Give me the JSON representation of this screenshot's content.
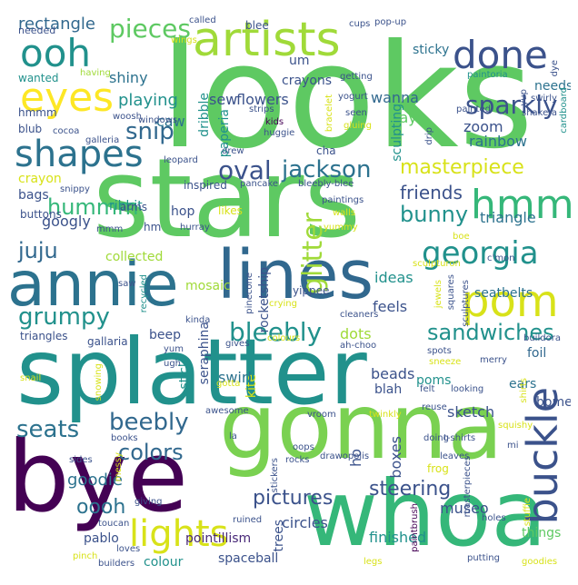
{
  "palette": {
    "background": "#ffffff",
    "dark_purple": "#440154",
    "indigo": "#3b528b",
    "teal": "#21918c",
    "green": "#5ec962",
    "yellow": "#fde725"
  },
  "words": [
    {
      "text": "looks",
      "color": "#5ec962"
    },
    {
      "text": "stars",
      "color": "#5ec962"
    },
    {
      "text": "splatter",
      "color": "#21918c"
    },
    {
      "text": "gonna",
      "color": "#7ad151"
    },
    {
      "text": "whoa",
      "color": "#35b779"
    },
    {
      "text": "bye",
      "color": "#440154"
    },
    {
      "text": "annie",
      "color": "#2c728e"
    },
    {
      "text": "lines",
      "color": "#31688e"
    },
    {
      "text": "artists",
      "color": "#a0da39"
    },
    {
      "text": "eyes",
      "color": "#fde725"
    },
    {
      "text": "ooh",
      "color": "#21918c"
    },
    {
      "text": "done",
      "color": "#3b528b"
    },
    {
      "text": "shapes",
      "color": "#2c728e"
    },
    {
      "text": "pom",
      "color": "#d8e219"
    },
    {
      "text": "hmm",
      "color": "#35b779"
    },
    {
      "text": "buckle",
      "color": "#3b528b"
    },
    {
      "text": "lights",
      "color": "#d8e219"
    },
    {
      "text": "georgia",
      "color": "#21918c"
    },
    {
      "text": "jackson",
      "color": "#2c728e"
    },
    {
      "text": "oval",
      "color": "#3b528b"
    },
    {
      "text": "masterpiece",
      "color": "#d8e219"
    },
    {
      "text": "pieces",
      "color": "#5ec962"
    },
    {
      "text": "sparkly",
      "color": "#3b528b"
    },
    {
      "text": "snip",
      "color": "#31688e"
    },
    {
      "text": "bleebly",
      "color": "#21918c"
    },
    {
      "text": "grumpy",
      "color": "#21918c"
    },
    {
      "text": "sandwiches",
      "color": "#21918c"
    },
    {
      "text": "glitter",
      "color": "#a0da39"
    },
    {
      "text": "beebly",
      "color": "#31688e"
    },
    {
      "text": "seats",
      "color": "#2c728e"
    },
    {
      "text": "colors",
      "color": "#31688e"
    },
    {
      "text": "juju",
      "color": "#31688e"
    },
    {
      "text": "bunny",
      "color": "#21918c"
    },
    {
      "text": "friends",
      "color": "#3b528b"
    },
    {
      "text": "oooh",
      "color": "#2c728e"
    },
    {
      "text": "steering",
      "color": "#3b528b"
    },
    {
      "text": "pictures",
      "color": "#3b528b"
    },
    {
      "text": "goodie",
      "color": "#2c728e"
    },
    {
      "text": "hummm",
      "color": "#35b779"
    },
    {
      "text": "wanna",
      "color": "#31688e"
    },
    {
      "text": "yay",
      "color": "#5ec962"
    },
    {
      "text": "playing",
      "color": "#21918c"
    },
    {
      "text": "rectangle",
      "color": "#31688e"
    },
    {
      "text": "crayons",
      "color": "#3b528b"
    },
    {
      "text": "flowers",
      "color": "#3b528b"
    },
    {
      "text": "sew",
      "color": "#3b528b"
    },
    {
      "text": "shiny",
      "color": "#2c728e"
    },
    {
      "text": "caw",
      "color": "#2c728e"
    },
    {
      "text": "zoom",
      "color": "#3b528b"
    },
    {
      "text": "rainbow",
      "color": "#2c728e"
    },
    {
      "text": "triangle",
      "color": "#2c728e"
    },
    {
      "text": "googly",
      "color": "#3b528b"
    },
    {
      "text": "feels",
      "color": "#3b528b"
    },
    {
      "text": "ideas",
      "color": "#21918c"
    },
    {
      "text": "mosaic",
      "color": "#a0da39"
    },
    {
      "text": "collected",
      "color": "#a0da39"
    },
    {
      "text": "hop",
      "color": "#3b528b"
    },
    {
      "text": "kite",
      "color": "#d8e219"
    },
    {
      "text": "swirl",
      "color": "#2c728e"
    },
    {
      "text": "dots",
      "color": "#a0da39"
    },
    {
      "text": "beads",
      "color": "#3b528b"
    },
    {
      "text": "blah",
      "color": "#3b528b"
    },
    {
      "text": "poms",
      "color": "#21918c"
    },
    {
      "text": "sketch",
      "color": "#3b528b"
    },
    {
      "text": "boxes",
      "color": "#3b528b"
    },
    {
      "text": "ho",
      "color": "#3b528b"
    },
    {
      "text": "museo",
      "color": "#3b528b"
    },
    {
      "text": "circles",
      "color": "#3b528b"
    },
    {
      "text": "finished",
      "color": "#21918c"
    },
    {
      "text": "things",
      "color": "#5ec962"
    },
    {
      "text": "pablo",
      "color": "#3b528b"
    },
    {
      "text": "colour",
      "color": "#21918c"
    },
    {
      "text": "spaceball",
      "color": "#3b528b"
    },
    {
      "text": "pointillism",
      "color": "#482878"
    },
    {
      "text": "trees",
      "color": "#3b528b"
    },
    {
      "text": "foil",
      "color": "#31688e"
    },
    {
      "text": "ears",
      "color": "#2c728e"
    },
    {
      "text": "bome",
      "color": "#3b528b"
    },
    {
      "text": "stick",
      "color": "#21918c"
    },
    {
      "text": "seraphina",
      "color": "#3b528b"
    },
    {
      "text": "rocketship",
      "color": "#3b528b"
    },
    {
      "text": "dribble",
      "color": "#21918c"
    },
    {
      "text": "paperia",
      "color": "#21918c"
    },
    {
      "text": "sculpting",
      "color": "#21918c"
    },
    {
      "text": "seatbelts",
      "color": "#2c728e"
    },
    {
      "text": "needs",
      "color": "#2c728e"
    },
    {
      "text": "sticky",
      "color": "#2c728e"
    },
    {
      "text": "beep",
      "color": "#3b528b"
    },
    {
      "text": "bags",
      "color": "#3b528b"
    },
    {
      "text": "ribbit",
      "color": "#21918c"
    },
    {
      "text": "crayon",
      "color": "#d8e219"
    },
    {
      "text": "um",
      "color": "#3b528b"
    },
    {
      "text": "wanted",
      "color": "#21918c"
    },
    {
      "text": "needed",
      "color": "#3b528b"
    },
    {
      "text": "blub",
      "color": "#3b528b"
    },
    {
      "text": "hmmm",
      "color": "#3b528b"
    },
    {
      "text": "blee",
      "color": "#3b528b"
    },
    {
      "text": "cups",
      "color": "#3b528b"
    },
    {
      "text": "called",
      "color": "#3b528b"
    },
    {
      "text": "pop-up",
      "color": "#3b528b"
    },
    {
      "text": "wings",
      "color": "#d8e219"
    },
    {
      "text": "having",
      "color": "#a0da39"
    },
    {
      "text": "getting",
      "color": "#3b528b"
    },
    {
      "text": "paintoria",
      "color": "#21918c"
    },
    {
      "text": "swirly",
      "color": "#3b528b"
    },
    {
      "text": "dye",
      "color": "#3b528b"
    },
    {
      "text": "yup",
      "color": "#3b528b"
    },
    {
      "text": "painted",
      "color": "#3b528b"
    },
    {
      "text": "shake-a",
      "color": "#3b528b"
    },
    {
      "text": "cardboard",
      "color": "#21918c"
    },
    {
      "text": "yogurt",
      "color": "#3b528b"
    },
    {
      "text": "seen",
      "color": "#3b528b"
    },
    {
      "text": "gluing",
      "color": "#d8e219"
    },
    {
      "text": "strips",
      "color": "#3b528b"
    },
    {
      "text": "bracelet",
      "color": "#d8e219"
    },
    {
      "text": "kids",
      "color": "#440154"
    },
    {
      "text": "huggie",
      "color": "#3b528b"
    },
    {
      "text": "drip",
      "color": "#3b528b"
    },
    {
      "text": "windows",
      "color": "#3b528b"
    },
    {
      "text": "cocoa",
      "color": "#3b528b"
    },
    {
      "text": "galleria",
      "color": "#3b528b"
    },
    {
      "text": "woosh",
      "color": "#3b528b"
    },
    {
      "text": "drew",
      "color": "#3b528b"
    },
    {
      "text": "leopard",
      "color": "#3b528b"
    },
    {
      "text": "cha",
      "color": "#3b528b"
    },
    {
      "text": "pancake",
      "color": "#3b528b"
    },
    {
      "text": "bleebly-blee",
      "color": "#3b528b"
    },
    {
      "text": "inspired",
      "color": "#3b528b"
    },
    {
      "text": "snippy",
      "color": "#3b528b"
    },
    {
      "text": "arms",
      "color": "#3b528b"
    },
    {
      "text": "buttons",
      "color": "#3b528b"
    },
    {
      "text": "likes",
      "color": "#d8e219"
    },
    {
      "text": "paintings",
      "color": "#3b528b"
    },
    {
      "text": "walls",
      "color": "#d8e219"
    },
    {
      "text": "hurray",
      "color": "#3b528b"
    },
    {
      "text": "mmm",
      "color": "#3b528b"
    },
    {
      "text": "hm",
      "color": "#3b528b"
    },
    {
      "text": "yummy",
      "color": "#d8e219"
    },
    {
      "text": "boe",
      "color": "#d8e219"
    },
    {
      "text": "c'mon",
      "color": "#3b528b"
    },
    {
      "text": "sculpturon",
      "color": "#d8e219"
    },
    {
      "text": "saw",
      "color": "#3b528b"
    },
    {
      "text": "recycled",
      "color": "#21918c"
    },
    {
      "text": "yippee",
      "color": "#3b528b"
    },
    {
      "text": "pinecone",
      "color": "#3b528b"
    },
    {
      "text": "crying",
      "color": "#d8e219"
    },
    {
      "text": "jewels",
      "color": "#d8e219"
    },
    {
      "text": "squares",
      "color": "#3b528b"
    },
    {
      "text": "sculptures",
      "color": "#3b528b"
    },
    {
      "text": "kinda",
      "color": "#3b528b"
    },
    {
      "text": "cleaners",
      "color": "#3b528b"
    },
    {
      "text": "spots",
      "color": "#3b528b"
    },
    {
      "text": "sneeze",
      "color": "#d8e219"
    },
    {
      "text": "triangles",
      "color": "#3b528b"
    },
    {
      "text": "gallaria",
      "color": "#3b528b"
    },
    {
      "text": "yum",
      "color": "#3b528b"
    },
    {
      "text": "colours",
      "color": "#d8e219"
    },
    {
      "text": "ah-choo",
      "color": "#3b528b"
    },
    {
      "text": "buildora",
      "color": "#3b528b"
    },
    {
      "text": "gives",
      "color": "#3b528b"
    },
    {
      "text": "ugh",
      "color": "#3b528b"
    },
    {
      "text": "merry",
      "color": "#3b528b"
    },
    {
      "text": "snail",
      "color": "#d8e219"
    },
    {
      "text": "snowing",
      "color": "#d8e219"
    },
    {
      "text": "gotta",
      "color": "#d8e219"
    },
    {
      "text": "felt",
      "color": "#3b528b"
    },
    {
      "text": "looking",
      "color": "#3b528b"
    },
    {
      "text": "shirts",
      "color": "#d8e219"
    },
    {
      "text": "awesome",
      "color": "#3b528b"
    },
    {
      "text": "vroom",
      "color": "#3b528b"
    },
    {
      "text": "twinkly",
      "color": "#d8e219"
    },
    {
      "text": "reuse",
      "color": "#3b528b"
    },
    {
      "text": "squishy",
      "color": "#d8e219"
    },
    {
      "text": "la",
      "color": "#3b528b"
    },
    {
      "text": "doing",
      "color": "#3b528b"
    },
    {
      "text": "t-shirts",
      "color": "#3b528b"
    },
    {
      "text": "mi",
      "color": "#3b528b"
    },
    {
      "text": "sides",
      "color": "#3b528b"
    },
    {
      "text": "books",
      "color": "#3b528b"
    },
    {
      "text": "oops",
      "color": "#3b528b"
    },
    {
      "text": "drawopolis",
      "color": "#3b528b"
    },
    {
      "text": "leaves",
      "color": "#3b528b"
    },
    {
      "text": "frog",
      "color": "#d8e219"
    },
    {
      "text": "messy",
      "color": "#d8e219"
    },
    {
      "text": "rocks",
      "color": "#3b528b"
    },
    {
      "text": "stickers",
      "color": "#3b528b"
    },
    {
      "text": "masterpieces",
      "color": "#3b528b"
    },
    {
      "text": "paintbrush",
      "color": "#440154"
    },
    {
      "text": "toucan",
      "color": "#3b528b"
    },
    {
      "text": "giving",
      "color": "#3b528b"
    },
    {
      "text": "ruined",
      "color": "#3b528b"
    },
    {
      "text": "holes",
      "color": "#3b528b"
    },
    {
      "text": "pinch",
      "color": "#d8e219"
    },
    {
      "text": "loves",
      "color": "#3b528b"
    },
    {
      "text": "stuffie",
      "color": "#d8e219"
    },
    {
      "text": "builders",
      "color": "#3b528b"
    },
    {
      "text": "legs",
      "color": "#d8e219"
    },
    {
      "text": "putting",
      "color": "#3b528b"
    },
    {
      "text": "goodies",
      "color": "#d8e219"
    }
  ]
}
